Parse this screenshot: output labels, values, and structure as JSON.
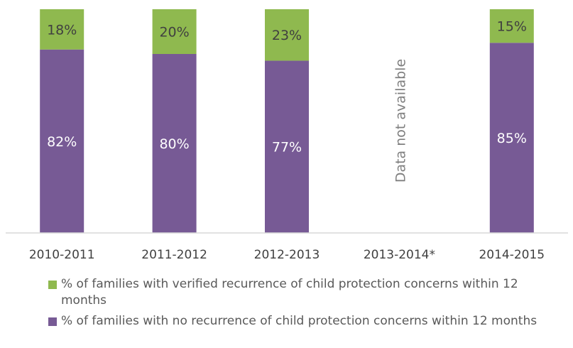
{
  "chart_data": {
    "type": "bar",
    "stacked": true,
    "percent_stacked": true,
    "categories": [
      "2010-2011",
      "2011-2012",
      "2012-2013",
      "2013-2014*",
      "2014-2015"
    ],
    "series": [
      {
        "name": "% of families with no recurrence of child protection concerns within 12 months",
        "color": "#775a95",
        "values": [
          82,
          80,
          77,
          null,
          85
        ],
        "labels": [
          "82%",
          "80%",
          "77%",
          "",
          "85%"
        ]
      },
      {
        "name": "% of families with verified recurrence of child protection concerns within 12 months",
        "color": "#8fb94f",
        "values": [
          18,
          20,
          23,
          null,
          15
        ],
        "labels": [
          "18%",
          "20%",
          "23%",
          "",
          "15%"
        ]
      }
    ],
    "annotation": {
      "category": "2013-2014*",
      "text": "Data not available"
    },
    "ylim": [
      0,
      100
    ],
    "grid": false,
    "legend_position": "bottom"
  }
}
